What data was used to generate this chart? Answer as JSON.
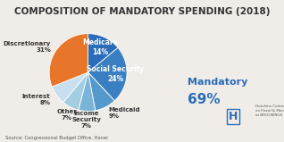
{
  "title": "COMPOSITION OF MANDATORY SPENDING (2018)",
  "slices": [
    {
      "label": "Medicare\n14%",
      "value": 14,
      "color": "#2b6cb8",
      "label_inside": true,
      "label_r": 0.72
    },
    {
      "label": "Social Security\n24%",
      "value": 24,
      "color": "#3a7fc1",
      "label_inside": true,
      "label_r": 0.7
    },
    {
      "label": "Medicaid\n9%",
      "value": 9,
      "color": "#5599cc",
      "label_inside": false,
      "label_r": 1.18
    },
    {
      "label": "Income\nSecurity\n7%",
      "value": 7,
      "color": "#7ab4d8",
      "label_inside": false,
      "label_r": 1.18
    },
    {
      "label": "Other\n7%",
      "value": 7,
      "color": "#a3cde0",
      "label_inside": false,
      "label_r": 1.18
    },
    {
      "label": "Interest\n8%",
      "value": 8,
      "color": "#c8dff0",
      "label_inside": false,
      "label_r": 1.18
    },
    {
      "label": "Discretionary\n31%",
      "value": 31,
      "color": "#e8762a",
      "label_inside": false,
      "label_r": 1.18
    }
  ],
  "mandatory_label_line1": "Mandatory",
  "mandatory_label_line2": "69%",
  "source_text": "Source: Congressional Budget Office, Haver",
  "bg_color": "#f0ede8",
  "title_fontsize": 7.5,
  "label_fontsize_inside": 5.5,
  "label_fontsize_outside": 5.0,
  "mandatory_fontsize": 8.0
}
